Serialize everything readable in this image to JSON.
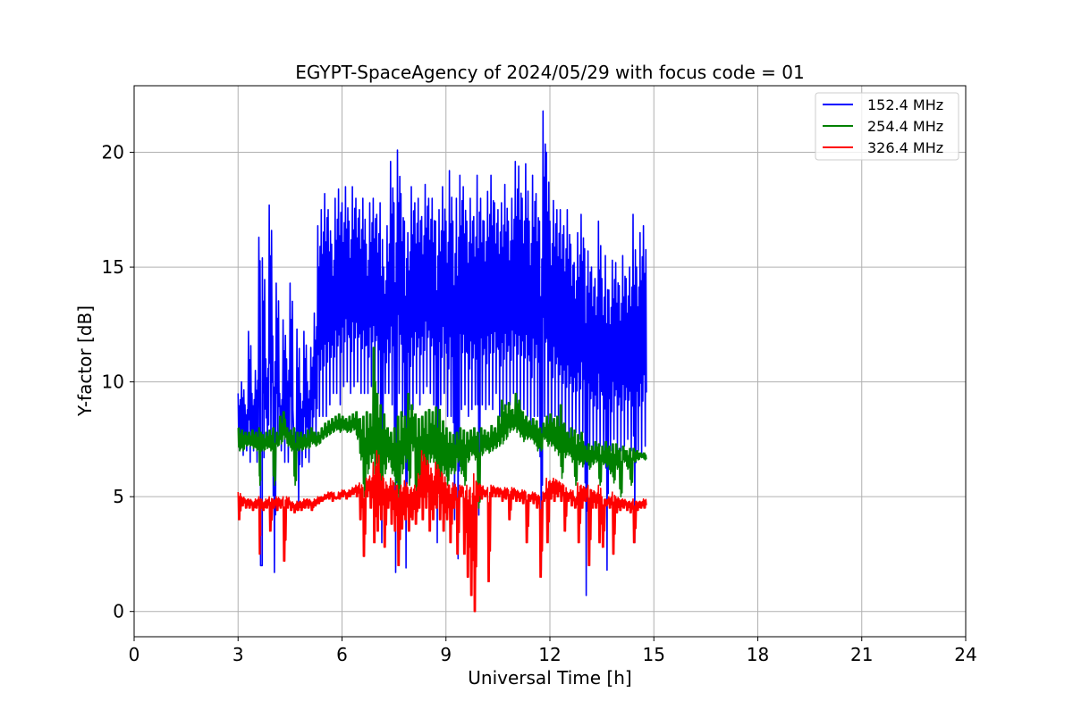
{
  "chart_data": {
    "type": "line",
    "title": "EGYPT-SpaceAgency of 2024/05/29 with focus code = 01",
    "xlabel": "Universal Time [h]",
    "ylabel": "Y-factor [dB]",
    "xlim": [
      0,
      24
    ],
    "ylim": [
      -1.1,
      22.9
    ],
    "xticks": [
      0,
      3,
      6,
      9,
      12,
      15,
      18,
      21,
      24
    ],
    "yticks": [
      0,
      5,
      10,
      15,
      20
    ],
    "xtick_labels": [
      "0",
      "3",
      "6",
      "9",
      "12",
      "15",
      "18",
      "21",
      "24"
    ],
    "ytick_labels": [
      "0",
      "5",
      "10",
      "15",
      "20"
    ],
    "grid": true,
    "legend_position": "top-right",
    "series": [
      {
        "name": "152.4 MHz",
        "color": "#0000ff",
        "x": [
          3.0,
          3.1,
          3.2,
          3.3,
          3.4,
          3.5,
          3.6,
          3.65,
          3.7,
          3.8,
          3.9,
          4.0,
          4.1,
          4.2,
          4.3,
          4.4,
          4.5,
          4.6,
          4.7,
          4.8,
          4.9,
          5.0,
          5.1,
          5.2,
          5.3,
          5.4,
          5.5,
          5.6,
          5.7,
          5.8,
          5.9,
          6.0,
          6.1,
          6.2,
          6.3,
          6.4,
          6.5,
          6.6,
          6.7,
          6.8,
          6.9,
          7.0,
          7.1,
          7.2,
          7.3,
          7.4,
          7.5,
          7.6,
          7.7,
          7.8,
          7.9,
          8.0,
          8.1,
          8.2,
          8.3,
          8.4,
          8.5,
          8.6,
          8.7,
          8.8,
          8.9,
          9.0,
          9.1,
          9.2,
          9.3,
          9.4,
          9.5,
          9.6,
          9.7,
          9.8,
          9.9,
          10.0,
          10.1,
          10.2,
          10.3,
          10.4,
          10.5,
          10.6,
          10.7,
          10.8,
          10.9,
          11.0,
          11.1,
          11.2,
          11.3,
          11.4,
          11.5,
          11.6,
          11.7,
          11.8,
          11.9,
          12.0,
          12.1,
          12.2,
          12.3,
          12.4,
          12.5,
          12.6,
          12.7,
          12.8,
          12.9,
          13.0,
          13.1,
          13.2,
          13.3,
          13.4,
          13.5,
          13.6,
          13.7,
          13.8,
          13.9,
          14.0,
          14.1,
          14.2,
          14.3,
          14.4,
          14.5,
          14.6,
          14.7
        ],
        "y_max": [
          9.5,
          10.0,
          9.0,
          12.2,
          9.5,
          10.5,
          16.3,
          2.0,
          15.4,
          11.0,
          17.7,
          12.0,
          14.3,
          9.5,
          12.7,
          11.0,
          14.3,
          8.0,
          12.3,
          9.5,
          12.2,
          10.0,
          11.5,
          13.0,
          16.8,
          17.5,
          18.2,
          17.5,
          16.0,
          18.0,
          18.4,
          17.8,
          18.5,
          17.0,
          18.5,
          18.0,
          17.5,
          18.0,
          16.0,
          17.8,
          18.0,
          17.3,
          17.8,
          15.0,
          16.8,
          19.6,
          17.8,
          20.1,
          18.2,
          17.0,
          16.5,
          18.5,
          17.8,
          18.0,
          17.2,
          18.6,
          18.0,
          18.0,
          17.0,
          17.5,
          18.5,
          17.0,
          19.2,
          17.0,
          18.0,
          19.0,
          18.5,
          17.0,
          18.0,
          17.2,
          19.0,
          18.0,
          17.0,
          18.3,
          19.0,
          17.8,
          17.5,
          17.8,
          18.6,
          17.0,
          18.0,
          19.6,
          19.4,
          18.0,
          19.5,
          17.0,
          19.0,
          18.2,
          17.0,
          21.8,
          20.0,
          17.0,
          17.9,
          17.5,
          17.5,
          16.8,
          17.5,
          16.0,
          15.2,
          16.5,
          17.3,
          15.8,
          15.7,
          15.0,
          14.5,
          17.0,
          14.5,
          15.5,
          14.0,
          15.3,
          15.2,
          14.2,
          15.5,
          14.5,
          15.0,
          17.3,
          15.0,
          16.5,
          16.8
        ],
        "y_min": [
          7.0,
          6.8,
          7.0,
          6.5,
          7.0,
          6.5,
          6.8,
          2.0,
          6.7,
          7.2,
          7.5,
          1.7,
          7.2,
          7.0,
          6.5,
          6.5,
          7.0,
          6.2,
          4.5,
          6.3,
          6.7,
          6.5,
          7.5,
          7.5,
          8.5,
          8.5,
          8.5,
          9.0,
          9.5,
          9.5,
          9.0,
          9.8,
          10.0,
          9.5,
          9.8,
          10.0,
          9.5,
          9.5,
          9.5,
          9.8,
          9.8,
          9.5,
          3.0,
          9.5,
          9.5,
          9.0,
          1.7,
          9.5,
          8.5,
          1.9,
          8.8,
          8.8,
          9.5,
          9.0,
          9.5,
          9.8,
          9.5,
          9.0,
          3.0,
          9.0,
          9.5,
          8.5,
          8.5,
          4.0,
          2.3,
          8.8,
          9.0,
          8.5,
          8.8,
          9.0,
          4.2,
          9.0,
          8.8,
          9.0,
          8.8,
          9.5,
          8.5,
          8.8,
          9.0,
          9.0,
          9.5,
          8.5,
          8.5,
          8.8,
          8.5,
          8.0,
          8.5,
          8.5,
          1.8,
          8.5,
          8.0,
          8.0,
          8.5,
          8.0,
          7.5,
          7.5,
          7.5,
          7.5,
          7.8,
          7.5,
          7.8,
          0.7,
          7.2,
          7.0,
          7.0,
          7.2,
          7.0,
          1.8,
          7.0,
          7.5,
          7.0,
          7.0,
          7.2,
          7.5,
          7.0,
          3.0,
          7.0,
          6.8,
          7.2
        ]
      },
      {
        "name": "254.4 MHz",
        "color": "#008000",
        "x": [
          3.0,
          3.1,
          3.2,
          3.3,
          3.4,
          3.5,
          3.6,
          3.65,
          3.7,
          3.8,
          3.9,
          4.0,
          4.1,
          4.2,
          4.3,
          4.4,
          4.5,
          4.6,
          4.7,
          4.8,
          4.9,
          5.0,
          5.1,
          5.2,
          5.3,
          5.4,
          5.5,
          5.6,
          5.7,
          5.8,
          5.9,
          6.0,
          6.1,
          6.2,
          6.3,
          6.4,
          6.5,
          6.6,
          6.7,
          6.8,
          6.9,
          7.0,
          7.1,
          7.2,
          7.3,
          7.4,
          7.5,
          7.6,
          7.7,
          7.8,
          7.9,
          8.0,
          8.1,
          8.2,
          8.3,
          8.4,
          8.5,
          8.6,
          8.7,
          8.8,
          8.9,
          9.0,
          9.1,
          9.2,
          9.3,
          9.4,
          9.5,
          9.6,
          9.7,
          9.8,
          9.9,
          10.0,
          10.1,
          10.2,
          10.3,
          10.4,
          10.5,
          10.6,
          10.7,
          10.8,
          10.9,
          11.0,
          11.1,
          11.2,
          11.3,
          11.4,
          11.5,
          11.6,
          11.7,
          11.8,
          11.9,
          12.0,
          12.1,
          12.2,
          12.3,
          12.4,
          12.5,
          12.6,
          12.7,
          12.8,
          12.9,
          13.0,
          13.1,
          13.2,
          13.3,
          13.4,
          13.5,
          13.6,
          13.7,
          13.8,
          13.9,
          14.0,
          14.1,
          14.2,
          14.3,
          14.4,
          14.5,
          14.6,
          14.7
        ],
        "y_max": [
          8.0,
          7.9,
          7.8,
          7.8,
          7.9,
          7.8,
          8.0,
          7.8,
          7.7,
          7.8,
          7.9,
          8.0,
          7.8,
          8.5,
          8.7,
          8.0,
          7.9,
          8.0,
          7.8,
          7.8,
          7.7,
          7.9,
          8.0,
          7.8,
          7.8,
          8.0,
          8.2,
          8.3,
          8.4,
          8.5,
          8.6,
          8.5,
          8.4,
          8.5,
          8.6,
          8.7,
          8.4,
          8.5,
          8.7,
          8.6,
          11.5,
          9.5,
          9.0,
          8.6,
          8.0,
          7.8,
          8.0,
          8.5,
          8.7,
          8.5,
          9.5,
          9.0,
          8.6,
          8.4,
          8.5,
          8.7,
          8.8,
          8.7,
          8.9,
          8.8,
          8.3,
          8.0,
          7.8,
          7.7,
          7.8,
          8.0,
          7.9,
          7.8,
          7.9,
          8.0,
          7.8,
          8.0,
          7.9,
          7.8,
          8.1,
          8.0,
          8.5,
          9.2,
          9.0,
          9.1,
          8.8,
          9.5,
          9.2,
          8.7,
          8.5,
          8.3,
          8.4,
          8.3,
          8.0,
          8.2,
          8.5,
          8.6,
          8.4,
          8.5,
          9.0,
          8.2,
          7.8,
          8.0,
          7.9,
          7.7,
          7.8,
          7.2,
          7.3,
          7.2,
          7.4,
          7.3,
          7.2,
          7.4,
          7.2,
          7.3,
          7.3,
          7.1,
          7.2,
          7.0,
          7.1,
          7.1,
          7.0,
          6.9,
          6.9
        ],
        "y_min": [
          7.0,
          7.0,
          7.2,
          7.2,
          7.1,
          7.0,
          5.5,
          7.0,
          7.0,
          7.1,
          7.0,
          5.5,
          7.2,
          7.3,
          7.5,
          7.2,
          7.0,
          5.5,
          7.0,
          7.0,
          7.1,
          7.1,
          7.3,
          7.2,
          7.3,
          7.5,
          7.6,
          7.7,
          7.8,
          7.9,
          7.8,
          7.9,
          7.8,
          7.8,
          7.9,
          7.5,
          6.6,
          5.0,
          6.0,
          6.5,
          6.0,
          5.5,
          5.0,
          6.0,
          6.5,
          6.0,
          5.5,
          4.5,
          6.0,
          6.5,
          5.5,
          7.0,
          4.8,
          5.5,
          6.5,
          5.0,
          6.5,
          6.5,
          5.5,
          5.0,
          6.0,
          5.5,
          6.0,
          6.0,
          6.5,
          6.0,
          5.5,
          6.5,
          6.8,
          6.6,
          4.5,
          6.8,
          7.0,
          6.9,
          7.0,
          7.1,
          7.2,
          7.3,
          7.5,
          7.8,
          7.9,
          7.8,
          7.6,
          7.4,
          7.5,
          7.5,
          7.3,
          7.0,
          7.0,
          7.5,
          7.2,
          7.2,
          7.0,
          6.8,
          5.8,
          6.7,
          6.8,
          6.5,
          5.5,
          6.4,
          6.3,
          6.5,
          6.2,
          6.4,
          6.5,
          5.5,
          6.4,
          6.3,
          6.0,
          5.6,
          6.2,
          5.0,
          6.5,
          6.2,
          5.5,
          6.5,
          6.6,
          6.7,
          6.6
        ]
      },
      {
        "name": "326.4 MHz",
        "color": "#ff0000",
        "x": [
          3.0,
          3.1,
          3.2,
          3.3,
          3.4,
          3.5,
          3.6,
          3.65,
          3.7,
          3.8,
          3.9,
          4.0,
          4.1,
          4.2,
          4.3,
          4.4,
          4.5,
          4.6,
          4.7,
          4.8,
          4.9,
          5.0,
          5.1,
          5.2,
          5.3,
          5.4,
          5.5,
          5.6,
          5.7,
          5.8,
          5.9,
          6.0,
          6.1,
          6.2,
          6.3,
          6.4,
          6.5,
          6.6,
          6.7,
          6.8,
          6.9,
          7.0,
          7.1,
          7.2,
          7.3,
          7.4,
          7.5,
          7.6,
          7.7,
          7.8,
          7.9,
          8.0,
          8.1,
          8.2,
          8.3,
          8.4,
          8.5,
          8.6,
          8.7,
          8.8,
          8.9,
          9.0,
          9.1,
          9.2,
          9.3,
          9.4,
          9.5,
          9.6,
          9.7,
          9.8,
          9.9,
          10.0,
          10.1,
          10.2,
          10.3,
          10.4,
          10.5,
          10.6,
          10.7,
          10.8,
          10.9,
          11.0,
          11.1,
          11.2,
          11.3,
          11.4,
          11.5,
          11.6,
          11.7,
          11.8,
          11.9,
          12.0,
          12.1,
          12.2,
          12.3,
          12.4,
          12.5,
          12.6,
          12.7,
          12.8,
          12.9,
          13.0,
          13.1,
          13.2,
          13.3,
          13.4,
          13.5,
          13.6,
          13.7,
          13.8,
          13.9,
          14.0,
          14.1,
          14.2,
          14.3,
          14.4,
          14.5,
          14.6,
          14.7
        ],
        "y_max": [
          5.2,
          5.0,
          4.9,
          4.9,
          4.8,
          4.9,
          5.0,
          4.9,
          4.8,
          4.9,
          5.0,
          4.9,
          5.0,
          4.9,
          5.0,
          5.0,
          4.8,
          4.7,
          4.8,
          4.8,
          4.9,
          4.9,
          4.8,
          4.9,
          5.0,
          5.0,
          5.1,
          5.2,
          5.2,
          5.0,
          5.2,
          5.3,
          5.2,
          5.3,
          5.4,
          5.5,
          5.6,
          5.4,
          5.8,
          5.9,
          6.5,
          7.0,
          6.0,
          5.8,
          5.5,
          5.8,
          5.6,
          5.5,
          5.5,
          5.7,
          5.4,
          5.4,
          5.5,
          6.0,
          7.0,
          6.7,
          6.4,
          6.0,
          6.5,
          6.2,
          6.0,
          5.6,
          5.5,
          5.6,
          5.4,
          5.5,
          5.4,
          5.5,
          5.4,
          6.0,
          5.6,
          5.5,
          5.3,
          5.4,
          5.5,
          5.4,
          5.4,
          5.3,
          5.4,
          5.3,
          5.4,
          5.3,
          5.2,
          5.3,
          5.2,
          5.1,
          5.2,
          5.1,
          5.0,
          5.2,
          5.8,
          5.7,
          5.8,
          5.7,
          5.6,
          5.5,
          5.2,
          5.3,
          5.0,
          5.6,
          5.5,
          5.4,
          5.5,
          5.3,
          5.2,
          5.5,
          5.0,
          4.9,
          5.0,
          5.2,
          5.0,
          4.9,
          4.9,
          4.8,
          4.8,
          4.9,
          4.8,
          4.8,
          4.9
        ],
        "y_min": [
          4.0,
          4.6,
          4.5,
          4.5,
          4.4,
          4.5,
          2.5,
          4.5,
          4.4,
          4.5,
          3.5,
          4.5,
          4.4,
          4.5,
          2.2,
          4.5,
          4.4,
          4.3,
          4.4,
          4.4,
          4.5,
          4.5,
          4.4,
          4.6,
          4.7,
          4.8,
          4.9,
          4.9,
          4.8,
          4.9,
          4.9,
          5.0,
          4.9,
          5.0,
          5.1,
          5.0,
          4.0,
          2.4,
          5.0,
          4.5,
          3.0,
          3.5,
          4.0,
          2.8,
          4.5,
          3.8,
          3.5,
          2.0,
          3.6,
          4.0,
          3.5,
          4.0,
          3.8,
          4.5,
          4.0,
          4.5,
          3.5,
          4.0,
          4.5,
          4.0,
          3.5,
          4.0,
          3.0,
          4.5,
          2.5,
          5.0,
          2.5,
          1.5,
          0.7,
          0.0,
          4.8,
          4.9,
          5.0,
          1.3,
          5.0,
          5.0,
          5.0,
          4.8,
          4.9,
          4.0,
          4.9,
          4.8,
          4.8,
          4.7,
          3.0,
          4.8,
          4.7,
          4.5,
          1.5,
          4.8,
          3.0,
          4.9,
          4.8,
          5.0,
          4.8,
          3.5,
          4.8,
          4.6,
          4.5,
          3.0,
          4.5,
          4.8,
          2.0,
          4.5,
          4.5,
          3.0,
          2.8,
          4.6,
          4.5,
          2.5,
          4.3,
          4.4,
          4.5,
          4.4,
          4.3,
          3.0,
          4.4,
          4.5,
          4.5
        ]
      }
    ]
  }
}
